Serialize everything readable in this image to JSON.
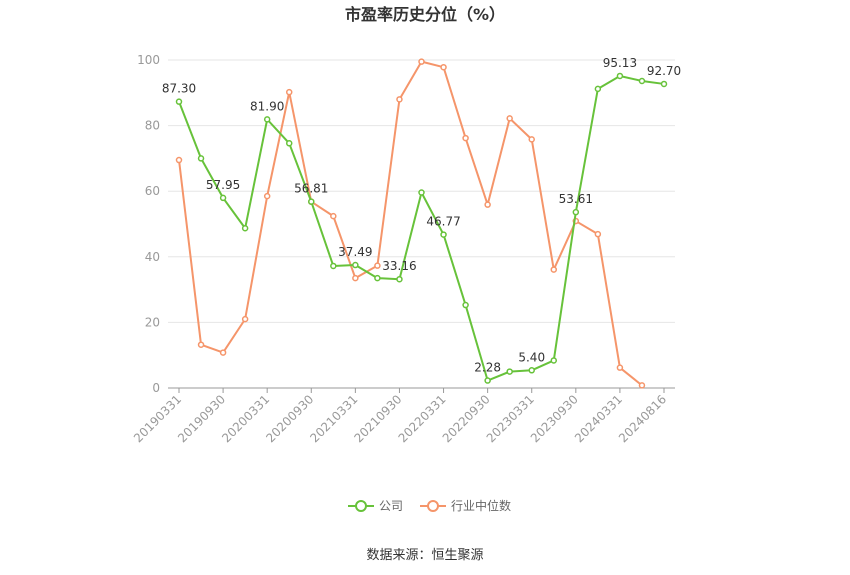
{
  "chart_data": {
    "type": "line",
    "title": "市盈率历史分位（%）",
    "ylim": [
      0,
      100
    ],
    "yticks": [
      0,
      20,
      40,
      60,
      80,
      100
    ],
    "x": [
      "20190331",
      "20190630",
      "20190930",
      "20191231",
      "20200331",
      "20200630",
      "20200930",
      "20201231",
      "20210331",
      "20210630",
      "20210930",
      "20211231",
      "20220331",
      "20220630",
      "20220930",
      "20221231",
      "20230331",
      "20230630",
      "20230930",
      "20231231",
      "20240331",
      "20240630",
      "20240816"
    ],
    "xtick_labels": [
      "20190331",
      "20190930",
      "20200331",
      "20200930",
      "20210331",
      "20210930",
      "20220331",
      "20220930",
      "20230331",
      "20230930",
      "20240331",
      "20240816"
    ],
    "series": [
      {
        "name": "公司",
        "color": "#67c23a",
        "values": [
          87.3,
          70.0,
          57.95,
          48.7,
          81.9,
          74.6,
          56.81,
          37.2,
          37.49,
          33.5,
          33.16,
          59.6,
          46.77,
          25.3,
          2.28,
          5.0,
          5.4,
          8.4,
          53.61,
          91.2,
          95.13,
          93.6,
          92.7
        ],
        "data_labels": [
          {
            "index": 0,
            "text": "87.30"
          },
          {
            "index": 2,
            "text": "57.95"
          },
          {
            "index": 4,
            "text": "81.90"
          },
          {
            "index": 6,
            "text": "56.81"
          },
          {
            "index": 8,
            "text": "37.49"
          },
          {
            "index": 10,
            "text": "33.16"
          },
          {
            "index": 12,
            "text": "46.77"
          },
          {
            "index": 14,
            "text": "2.28"
          },
          {
            "index": 16,
            "text": "5.40"
          },
          {
            "index": 18,
            "text": "53.61"
          },
          {
            "index": 20,
            "text": "95.13"
          },
          {
            "index": 22,
            "text": "92.70"
          }
        ]
      },
      {
        "name": "行业中位数",
        "color": "#f5956a",
        "values": [
          69.5,
          13.2,
          10.8,
          21.0,
          58.5,
          90.2,
          56.8,
          52.4,
          33.5,
          37.3,
          88.0,
          99.5,
          97.8,
          76.2,
          55.9,
          82.2,
          75.8,
          36.1,
          50.9,
          46.9,
          6.2,
          0.8,
          null
        ]
      }
    ],
    "legend_position": "bottom-center",
    "grid": true
  },
  "footer": {
    "source": "数据来源：恒生聚源"
  }
}
